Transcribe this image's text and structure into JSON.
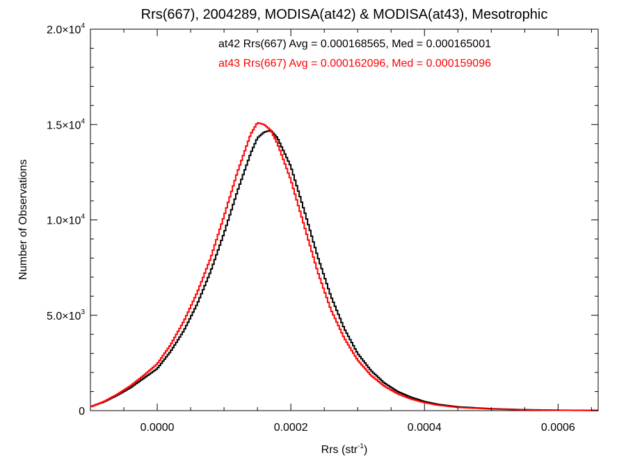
{
  "chart_data": {
    "type": "line",
    "step": true,
    "title": "Rrs(667), 2004289, MODISA(at42) & MODISA(at43), Mesotrophic",
    "xlabel": {
      "base": "Rrs (str",
      "sup": "-1",
      "tail": ")"
    },
    "ylabel": "Number of Observations",
    "xlim": [
      -0.0001,
      0.00066
    ],
    "ylim": [
      0,
      20000
    ],
    "grid": false,
    "x_ticks": [
      {
        "value": 0.0,
        "label": "0.0000"
      },
      {
        "value": 0.0002,
        "label": "0.0002"
      },
      {
        "value": 0.0004,
        "label": "0.0004"
      },
      {
        "value": 0.0006,
        "label": "0.0006"
      }
    ],
    "y_ticks": [
      {
        "value": 0,
        "label": "0",
        "exp": ""
      },
      {
        "value": 5000,
        "label": "5.0×10",
        "exp": "3"
      },
      {
        "value": 10000,
        "label": "1.0×10",
        "exp": "4"
      },
      {
        "value": 15000,
        "label": "1.5×10",
        "exp": "4"
      },
      {
        "value": 20000,
        "label": "2.0×10",
        "exp": "4"
      }
    ],
    "annotations": [
      {
        "text": "at42 Rrs(667) Avg = 0.000168565, Med = 0.000165001",
        "color": "#000000"
      },
      {
        "text": "at43 Rrs(667) Avg = 0.000162096, Med = 0.000159096",
        "color": "#ff0000"
      }
    ],
    "series": [
      {
        "color": "#000000",
        "points": [
          [
            -0.0001,
            200
          ],
          [
            -8e-05,
            450
          ],
          [
            -6e-05,
            800
          ],
          [
            -4e-05,
            1200
          ],
          [
            -2e-05,
            1700
          ],
          [
            0.0,
            2200
          ],
          [
            2e-05,
            3100
          ],
          [
            4e-05,
            4200
          ],
          [
            6e-05,
            5600
          ],
          [
            8e-05,
            7300
          ],
          [
            0.0001,
            9300
          ],
          [
            0.00012,
            11500
          ],
          [
            0.00014,
            13500
          ],
          [
            0.00015,
            14300
          ],
          [
            0.00016,
            14600
          ],
          [
            0.00017,
            14700
          ],
          [
            0.00018,
            14300
          ],
          [
            0.0002,
            12800
          ],
          [
            0.00022,
            10500
          ],
          [
            0.00024,
            8100
          ],
          [
            0.00026,
            6000
          ],
          [
            0.00028,
            4300
          ],
          [
            0.0003,
            3000
          ],
          [
            0.00032,
            2100
          ],
          [
            0.00034,
            1450
          ],
          [
            0.00036,
            1000
          ],
          [
            0.00038,
            700
          ],
          [
            0.0004,
            480
          ],
          [
            0.00042,
            330
          ],
          [
            0.00045,
            200
          ],
          [
            0.0005,
            100
          ],
          [
            0.00055,
            50
          ],
          [
            0.0006,
            25
          ],
          [
            0.00066,
            10
          ]
        ]
      },
      {
        "color": "#ff0000",
        "points": [
          [
            -0.0001,
            200
          ],
          [
            -8e-05,
            470
          ],
          [
            -6e-05,
            850
          ],
          [
            -4e-05,
            1300
          ],
          [
            -2e-05,
            1850
          ],
          [
            0.0,
            2450
          ],
          [
            2e-05,
            3450
          ],
          [
            4e-05,
            4700
          ],
          [
            6e-05,
            6200
          ],
          [
            8e-05,
            8000
          ],
          [
            0.0001,
            10200
          ],
          [
            0.00012,
            12500
          ],
          [
            0.00014,
            14500
          ],
          [
            0.00015,
            15100
          ],
          [
            0.00016,
            15000
          ],
          [
            0.00017,
            14700
          ],
          [
            0.00018,
            14000
          ],
          [
            0.0002,
            12100
          ],
          [
            0.00022,
            9700
          ],
          [
            0.00024,
            7300
          ],
          [
            0.00026,
            5300
          ],
          [
            0.00028,
            3800
          ],
          [
            0.0003,
            2650
          ],
          [
            0.00032,
            1850
          ],
          [
            0.00034,
            1280
          ],
          [
            0.00036,
            880
          ],
          [
            0.00038,
            610
          ],
          [
            0.0004,
            420
          ],
          [
            0.00042,
            290
          ],
          [
            0.00045,
            170
          ],
          [
            0.0005,
            85
          ],
          [
            0.00055,
            42
          ],
          [
            0.0006,
            20
          ],
          [
            0.00066,
            8
          ]
        ]
      }
    ]
  }
}
